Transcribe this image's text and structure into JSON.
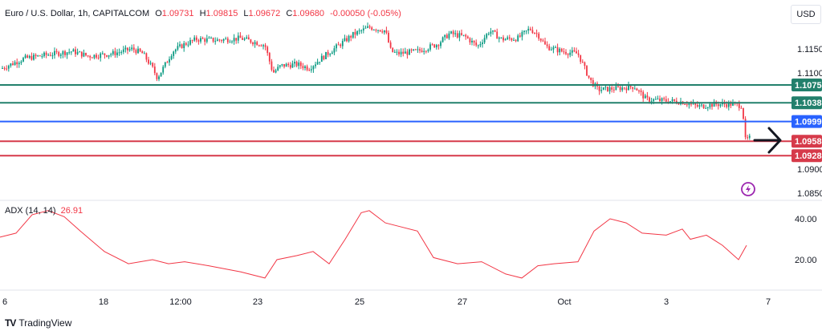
{
  "header": {
    "symbol": "Euro / U.S. Dollar, 1h, CAPITALCOM",
    "open_label": "O",
    "open": "1.09731",
    "high_label": "H",
    "high": "1.09815",
    "low_label": "L",
    "low": "1.09672",
    "close_label": "C",
    "close": "1.09680",
    "change": "-0.00050 (-0.05%)"
  },
  "currency_button": "USD",
  "indicator": {
    "name": "ADX (14, 14)",
    "value": "26.91"
  },
  "brand": {
    "name": "TradingView"
  },
  "colors": {
    "up": "#089981",
    "down": "#f23645",
    "teal": "#22806c",
    "blue": "#2962ff",
    "red": "#d63a4a",
    "adx": "#f23645"
  },
  "chart_data": {
    "type": "candlestick",
    "price_axis": {
      "ticks": [
        "1.1150",
        "1.1100",
        "1.0900",
        "1.0850"
      ],
      "range": [
        1.083,
        1.121
      ]
    },
    "horizontal_levels": [
      {
        "value": 1.1075,
        "label": "1.1075",
        "color": "teal"
      },
      {
        "value": 1.1038,
        "label": "1.1038",
        "color": "teal"
      },
      {
        "value": 1.0999,
        "label": "1.0999",
        "color": "blue"
      },
      {
        "value": 1.0958,
        "label": "1.0958",
        "color": "red"
      },
      {
        "value": 1.0928,
        "label": "1.0928",
        "color": "red"
      }
    ],
    "time_axis": [
      "6",
      "18",
      "12:00",
      "23",
      "25",
      "27",
      "Oct",
      "3",
      "7"
    ],
    "price_path": [
      [
        0,
        1.1108
      ],
      [
        30,
        1.113
      ],
      [
        60,
        1.1138
      ],
      [
        90,
        1.1145
      ],
      [
        110,
        1.1135
      ],
      [
        140,
        1.114
      ],
      [
        165,
        1.115
      ],
      [
        178,
        1.114
      ],
      [
        190,
        1.111
      ],
      [
        196,
        1.109
      ],
      [
        205,
        1.1115
      ],
      [
        215,
        1.1145
      ],
      [
        230,
        1.116
      ],
      [
        245,
        1.117
      ],
      [
        270,
        1.1168
      ],
      [
        300,
        1.1172
      ],
      [
        330,
        1.1158
      ],
      [
        340,
        1.11
      ],
      [
        350,
        1.1115
      ],
      [
        370,
        1.1118
      ],
      [
        385,
        1.111
      ],
      [
        400,
        1.113
      ],
      [
        420,
        1.1155
      ],
      [
        440,
        1.118
      ],
      [
        460,
        1.1195
      ],
      [
        480,
        1.1188
      ],
      [
        487,
        1.1145
      ],
      [
        495,
        1.114
      ],
      [
        520,
        1.1145
      ],
      [
        545,
        1.116
      ],
      [
        560,
        1.1182
      ],
      [
        580,
        1.1175
      ],
      [
        595,
        1.1155
      ],
      [
        610,
        1.1188
      ],
      [
        625,
        1.117
      ],
      [
        645,
        1.1172
      ],
      [
        660,
        1.1192
      ],
      [
        670,
        1.118
      ],
      [
        680,
        1.1155
      ],
      [
        700,
        1.1145
      ],
      [
        720,
        1.114
      ],
      [
        735,
        1.1085
      ],
      [
        745,
        1.1065
      ],
      [
        770,
        1.1068
      ],
      [
        790,
        1.1072
      ],
      [
        805,
        1.1045
      ],
      [
        830,
        1.1042
      ],
      [
        850,
        1.104
      ],
      [
        870,
        1.103
      ],
      [
        890,
        1.1035
      ],
      [
        910,
        1.1035
      ],
      [
        925,
        1.1032
      ],
      [
        928,
        1.096
      ],
      [
        935,
        1.0965
      ]
    ],
    "adx": [
      [
        0,
        31
      ],
      [
        20,
        33
      ],
      [
        40,
        42
      ],
      [
        60,
        44
      ],
      [
        80,
        41
      ],
      [
        100,
        34
      ],
      [
        130,
        24
      ],
      [
        160,
        18
      ],
      [
        190,
        20
      ],
      [
        210,
        18
      ],
      [
        230,
        19
      ],
      [
        260,
        17
      ],
      [
        300,
        14
      ],
      [
        330,
        11
      ],
      [
        345,
        20
      ],
      [
        370,
        22
      ],
      [
        390,
        24
      ],
      [
        410,
        18
      ],
      [
        430,
        30
      ],
      [
        450,
        43
      ],
      [
        460,
        44
      ],
      [
        480,
        38
      ],
      [
        500,
        36
      ],
      [
        520,
        34
      ],
      [
        540,
        21
      ],
      [
        570,
        18
      ],
      [
        600,
        19
      ],
      [
        630,
        13
      ],
      [
        650,
        11
      ],
      [
        670,
        17
      ],
      [
        690,
        18
      ],
      [
        720,
        19
      ],
      [
        740,
        34
      ],
      [
        760,
        40
      ],
      [
        780,
        38
      ],
      [
        800,
        33
      ],
      [
        830,
        32
      ],
      [
        850,
        35
      ],
      [
        860,
        30
      ],
      [
        880,
        32
      ],
      [
        900,
        27
      ],
      [
        920,
        20
      ],
      [
        930,
        27
      ]
    ],
    "adx_axis": {
      "ticks": [
        "40.00",
        "20.00"
      ],
      "range": [
        5,
        50
      ]
    }
  }
}
